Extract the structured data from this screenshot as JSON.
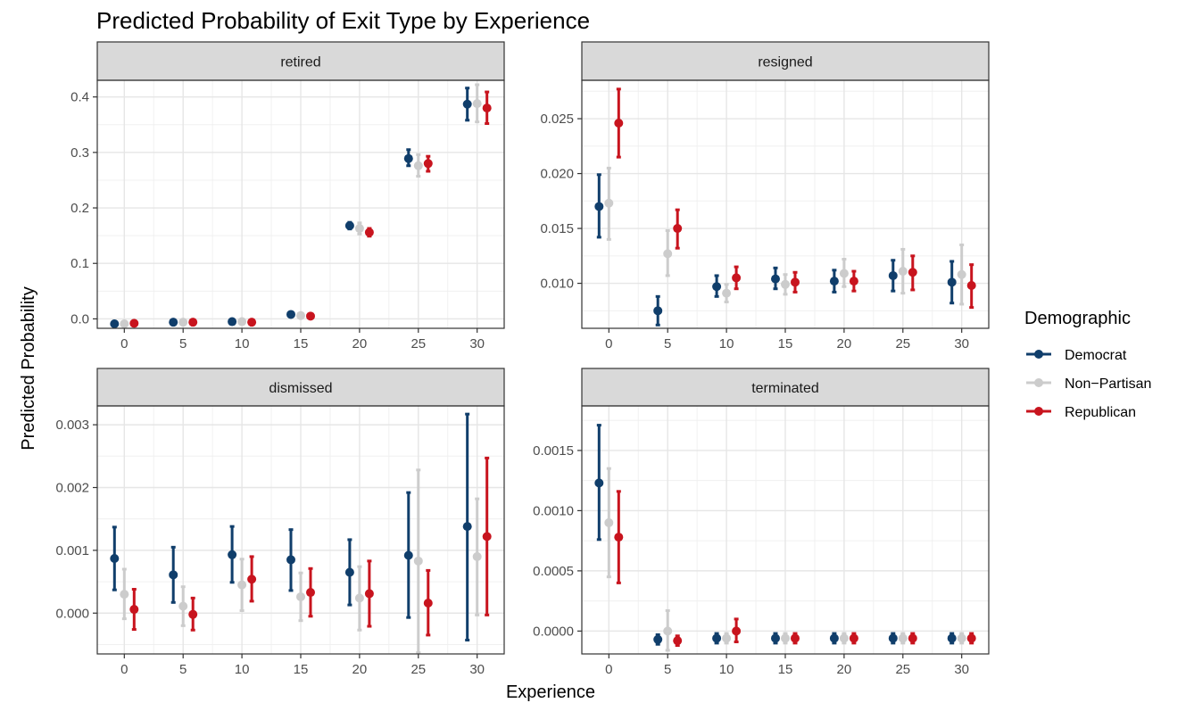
{
  "chart_data": {
    "type": "scatter",
    "title": "Predicted Probability of Exit Type by Experience",
    "xlabel": "Experience",
    "ylabel": "Predicted Probability",
    "grid": true,
    "legend": {
      "title": "Demographic",
      "placement": "right",
      "entries": [
        {
          "name": "Democrat",
          "color": "#103e6b"
        },
        {
          "name": "Non−Partisan",
          "color": "#cccccc"
        },
        {
          "name": "Republican",
          "color": "#c8141e"
        }
      ]
    },
    "x": [
      0,
      5,
      10,
      15,
      20,
      25,
      30
    ],
    "x_ticks": [
      "0",
      "5",
      "10",
      "15",
      "20",
      "25",
      "30"
    ],
    "xlim": [
      -2.3,
      32.3
    ],
    "panels": [
      {
        "label": "retired",
        "ylim": [
          -0.017,
          0.43
        ],
        "y_ticks": [
          0.0,
          0.1,
          0.2,
          0.3,
          0.4
        ],
        "y_tick_labels": [
          "0.0",
          "0.1",
          "0.2",
          "0.3",
          "0.4"
        ],
        "series": [
          {
            "name": "Democrat",
            "values": [
              -0.009,
              -0.006,
              -0.005,
              0.008,
              0.168,
              0.289,
              0.387
            ],
            "lower": [
              -0.01,
              -0.007,
              -0.006,
              0.006,
              0.162,
              0.276,
              0.358
            ],
            "upper": [
              -0.008,
              -0.005,
              -0.004,
              0.01,
              0.174,
              0.305,
              0.416
            ]
          },
          {
            "name": "Non−Partisan",
            "values": [
              -0.009,
              -0.006,
              -0.005,
              0.006,
              0.163,
              0.276,
              0.388
            ],
            "lower": [
              -0.011,
              -0.008,
              -0.007,
              0.003,
              0.153,
              0.257,
              0.355
            ],
            "upper": [
              -0.007,
              -0.004,
              -0.003,
              0.009,
              0.173,
              0.296,
              0.422
            ]
          },
          {
            "name": "Republican",
            "values": [
              -0.008,
              -0.006,
              -0.006,
              0.005,
              0.156,
              0.28,
              0.38
            ],
            "lower": [
              -0.01,
              -0.008,
              -0.008,
              0.002,
              0.149,
              0.266,
              0.352
            ],
            "upper": [
              -0.006,
              -0.004,
              -0.004,
              0.008,
              0.163,
              0.293,
              0.409
            ]
          }
        ]
      },
      {
        "label": "resigned",
        "ylim": [
          0.0059,
          0.0285
        ],
        "y_ticks": [
          0.01,
          0.015,
          0.02,
          0.025
        ],
        "y_tick_labels": [
          "0.010",
          "0.015",
          "0.020",
          "0.025"
        ],
        "series": [
          {
            "name": "Democrat",
            "values": [
              0.017,
              0.0075,
              0.0097,
              0.0104,
              0.0102,
              0.0107,
              0.0101
            ],
            "lower": [
              0.0142,
              0.0062,
              0.0088,
              0.0095,
              0.0092,
              0.0093,
              0.0082
            ],
            "upper": [
              0.0199,
              0.0088,
              0.0107,
              0.0114,
              0.0112,
              0.0121,
              0.012
            ]
          },
          {
            "name": "Non−Partisan",
            "values": [
              0.0173,
              0.0127,
              0.0091,
              0.0099,
              0.0109,
              0.0111,
              0.0108
            ],
            "lower": [
              0.014,
              0.0107,
              0.0083,
              0.009,
              0.0097,
              0.0091,
              0.0081
            ],
            "upper": [
              0.0205,
              0.0148,
              0.0099,
              0.0108,
              0.0122,
              0.0131,
              0.0135
            ]
          },
          {
            "name": "Republican",
            "values": [
              0.0246,
              0.015,
              0.0105,
              0.0101,
              0.0102,
              0.011,
              0.0098
            ],
            "lower": [
              0.0215,
              0.0132,
              0.0095,
              0.0092,
              0.0093,
              0.0094,
              0.0078
            ],
            "upper": [
              0.0277,
              0.0167,
              0.0115,
              0.011,
              0.0111,
              0.0125,
              0.0117
            ]
          }
        ]
      },
      {
        "label": "dismissed",
        "ylim": [
          -0.00065,
          0.0033
        ],
        "y_ticks": [
          0.0,
          0.001,
          0.002,
          0.003
        ],
        "y_tick_labels": [
          "0.000",
          "0.001",
          "0.002",
          "0.003"
        ],
        "series": [
          {
            "name": "Democrat",
            "values": [
              0.00087,
              0.00061,
              0.00093,
              0.00085,
              0.00065,
              0.00092,
              0.00138
            ],
            "lower": [
              0.00037,
              0.00017,
              0.00049,
              0.00036,
              0.00013,
              -7e-05,
              -0.00043
            ],
            "upper": [
              0.00137,
              0.00105,
              0.00138,
              0.00133,
              0.00117,
              0.00192,
              0.00317
            ]
          },
          {
            "name": "Non−Partisan",
            "values": [
              0.0003,
              0.00011,
              0.00045,
              0.00026,
              0.00024,
              0.00083,
              0.0009
            ],
            "lower": [
              -9e-05,
              -0.0002,
              4e-05,
              -0.00012,
              -0.00027,
              -0.00063,
              -3e-05
            ],
            "upper": [
              0.0007,
              0.00042,
              0.00086,
              0.00064,
              0.00074,
              0.00228,
              0.00182
            ]
          },
          {
            "name": "Republican",
            "values": [
              6e-05,
              -2e-05,
              0.00054,
              0.00033,
              0.00031,
              0.00016,
              0.00122
            ],
            "lower": [
              -0.00026,
              -0.00027,
              0.00019,
              -5e-05,
              -0.00021,
              -0.00035,
              -3e-05
            ],
            "upper": [
              0.00038,
              0.00024,
              0.0009,
              0.00071,
              0.00083,
              0.00068,
              0.00247
            ]
          }
        ]
      },
      {
        "label": "terminated",
        "ylim": [
          -0.00019,
          0.00187
        ],
        "y_ticks": [
          0.0,
          0.0005,
          0.001,
          0.0015
        ],
        "y_tick_labels": [
          "0.0000",
          "0.0005",
          "0.0010",
          "0.0015"
        ],
        "series": [
          {
            "name": "Democrat",
            "values": [
              0.00123,
              -7e-05,
              -6e-05,
              -6e-05,
              -6e-05,
              -6e-05,
              -6e-05
            ],
            "lower": [
              0.00076,
              -0.00011,
              -0.0001,
              -0.0001,
              -0.0001,
              -0.0001,
              -0.0001
            ],
            "upper": [
              0.00171,
              -3e-05,
              -2e-05,
              -2e-05,
              -2e-05,
              -2e-05,
              -2e-05
            ]
          },
          {
            "name": "Non−Partisan",
            "values": [
              0.0009,
              0.0,
              -6e-05,
              -6e-05,
              -6e-05,
              -6e-05,
              -6e-05
            ],
            "lower": [
              0.00045,
              -0.00016,
              -0.0001,
              -0.0001,
              -0.0001,
              -0.0001,
              -0.0001
            ],
            "upper": [
              0.00135,
              0.00017,
              -2e-05,
              -2e-05,
              -2e-05,
              -2e-05,
              -2e-05
            ]
          },
          {
            "name": "Republican",
            "values": [
              0.00078,
              -8e-05,
              0.0,
              -6e-05,
              -6e-05,
              -6e-05,
              -6e-05
            ],
            "lower": [
              0.0004,
              -0.00012,
              -9e-05,
              -0.0001,
              -0.0001,
              -0.0001,
              -0.0001
            ],
            "upper": [
              0.00116,
              -4e-05,
              0.0001,
              -2e-05,
              -2e-05,
              -2e-05,
              -2e-05
            ]
          }
        ]
      }
    ]
  }
}
